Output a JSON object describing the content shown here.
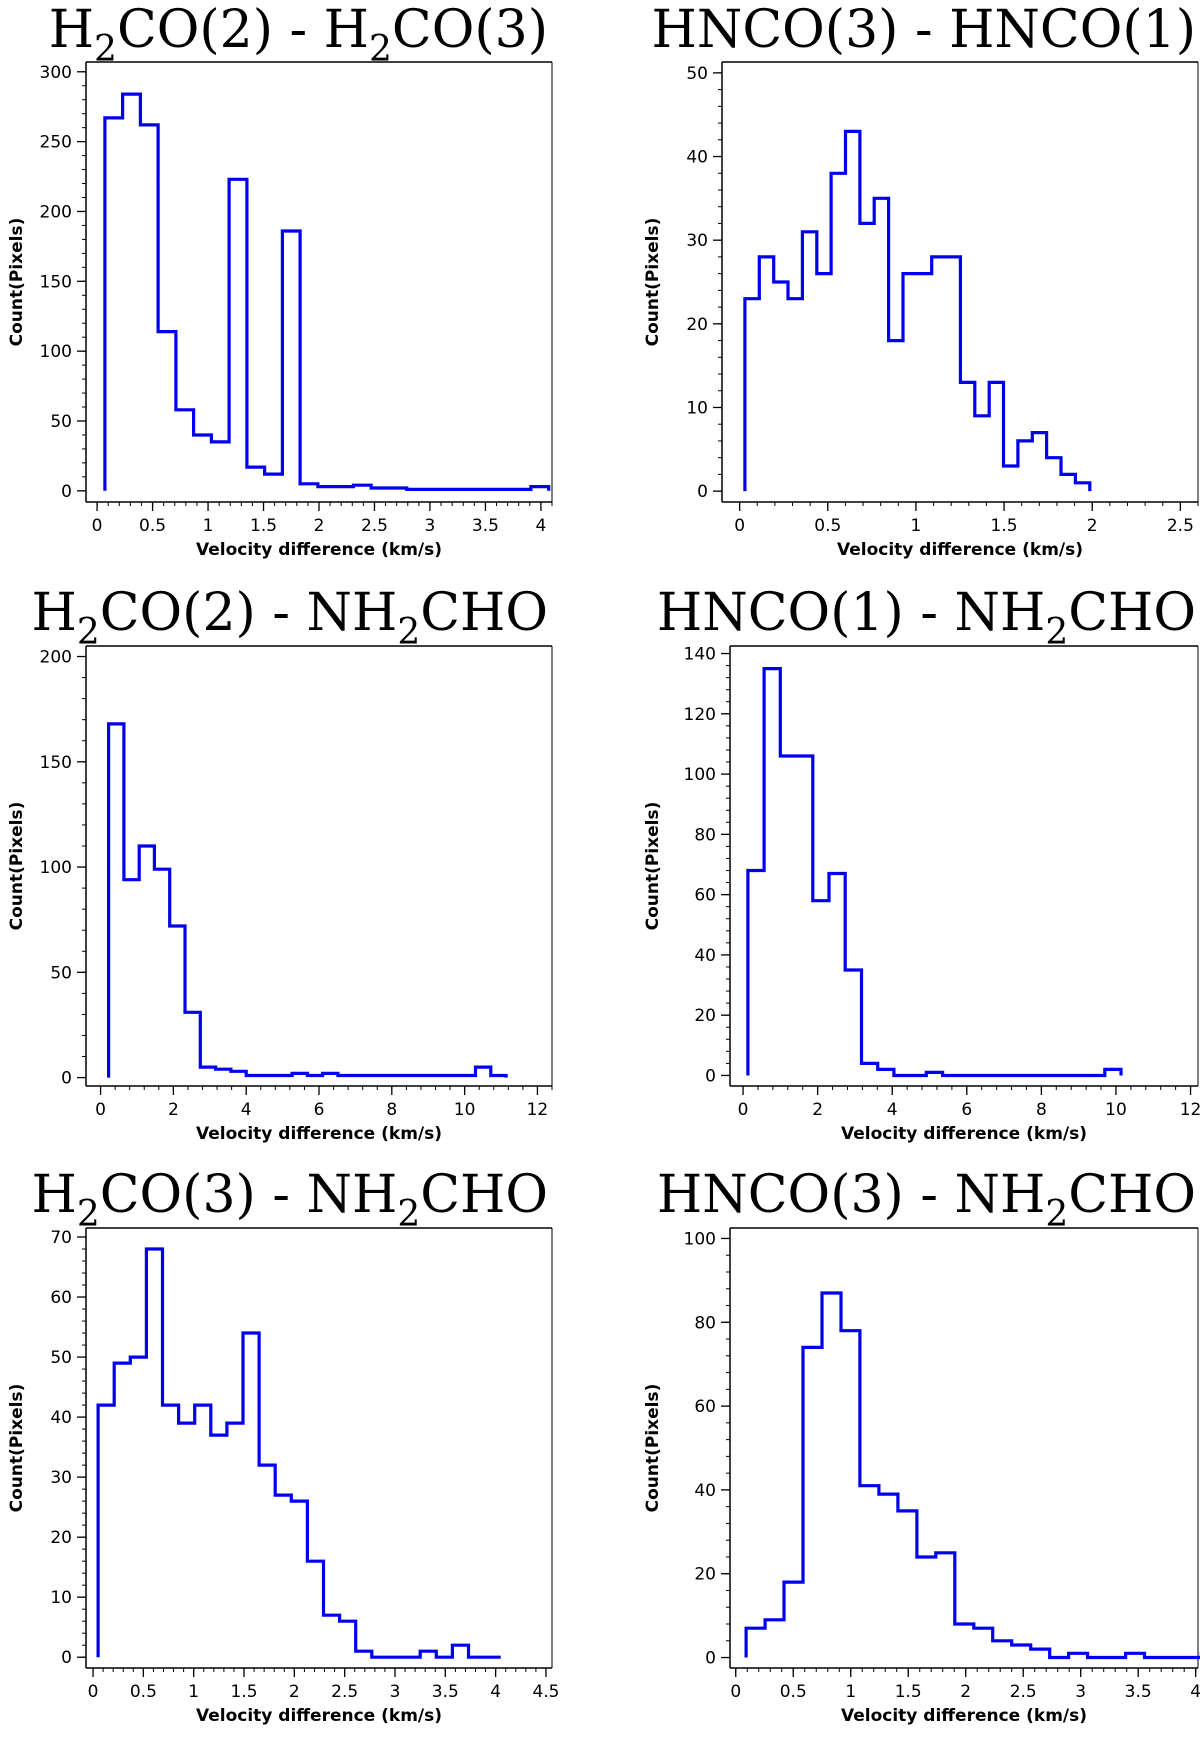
{
  "chart_data": [
    {
      "type": "histogram",
      "title": "H2CO(2) - H2CO(3)",
      "title_parts": [
        {
          "t": "H"
        },
        {
          "t": "2",
          "sub": true
        },
        {
          "t": "CO(2) - H"
        },
        {
          "t": "2",
          "sub": true
        },
        {
          "t": "CO(3)"
        }
      ],
      "xlabel": "Velocity difference (km/s)",
      "ylabel": "Count(Pixels)",
      "xlim": [
        -0.1,
        4.1
      ],
      "ylim": [
        -8,
        307
      ],
      "xticks": [
        "0",
        "0.5",
        "1",
        "1.5",
        "2",
        "2.5",
        "3",
        "3.5",
        "4"
      ],
      "xtick_values": [
        0,
        0.5,
        1,
        1.5,
        2,
        2.5,
        3,
        3.5,
        4
      ],
      "yticks": [
        "0",
        "50",
        "100",
        "150",
        "200",
        "250",
        "300"
      ],
      "ytick_values": [
        0,
        50,
        100,
        150,
        200,
        250,
        300
      ],
      "xminor": 0.1,
      "yminor": 10,
      "line_color": "#0000ee",
      "bin_start": 0.07,
      "bin_width": 0.16,
      "values": [
        267,
        284,
        262,
        114,
        58,
        40,
        35,
        223,
        17,
        12,
        186,
        5,
        3,
        3,
        4,
        2,
        2,
        1,
        1,
        1,
        1,
        1,
        1,
        1,
        3
      ]
    },
    {
      "type": "histogram",
      "title": "HNCO(3) - HNCO(1)",
      "title_parts": [
        {
          "t": "HNCO(3) - HNCO(1)"
        }
      ],
      "xlabel": "Velocity difference (km/s)",
      "ylabel": "Count(Pixels)",
      "xlim": [
        -0.1,
        2.6
      ],
      "ylim": [
        -1.3,
        51.3
      ],
      "xticks": [
        "0",
        "0.5",
        "1",
        "1.5",
        "2",
        "2.5"
      ],
      "xtick_values": [
        0,
        0.5,
        1,
        1.5,
        2,
        2.5
      ],
      "yticks": [
        "0",
        "10",
        "20",
        "30",
        "40",
        "50"
      ],
      "ytick_values": [
        0,
        10,
        20,
        30,
        40,
        50
      ],
      "xminor": 0.1,
      "yminor": 2,
      "line_color": "#0000ee",
      "bin_start": 0.03,
      "bin_width": 0.0815,
      "values": [
        23,
        28,
        25,
        23,
        31,
        26,
        38,
        43,
        32,
        35,
        18,
        26,
        26,
        28,
        28,
        13,
        9,
        13,
        3,
        6,
        7,
        4,
        2,
        1
      ]
    },
    {
      "type": "histogram",
      "title": "H2CO(2) - NH2CHO",
      "title_parts": [
        {
          "t": "H"
        },
        {
          "t": "2",
          "sub": true
        },
        {
          "t": "CO(2) - NH"
        },
        {
          "t": "2",
          "sub": true
        },
        {
          "t": "CHO"
        }
      ],
      "xlabel": "Velocity difference (km/s)",
      "ylabel": "Count(Pixels)",
      "xlim": [
        -0.4,
        12.4
      ],
      "ylim": [
        -4,
        205
      ],
      "xticks": [
        "0",
        "2",
        "4",
        "6",
        "8",
        "10",
        "12"
      ],
      "xtick_values": [
        0,
        2,
        4,
        6,
        8,
        10,
        12
      ],
      "yticks": [
        "0",
        "50",
        "100",
        "150",
        "200"
      ],
      "ytick_values": [
        0,
        50,
        100,
        150,
        200
      ],
      "xminor": 0.4,
      "yminor": 10,
      "line_color": "#0000ee",
      "bin_start": 0.22,
      "bin_width": 0.42,
      "values": [
        168,
        94,
        110,
        99,
        72,
        31,
        5,
        4,
        3,
        1,
        1,
        1,
        2,
        1,
        2,
        1,
        1,
        1,
        1,
        1,
        1,
        1,
        1,
        1,
        5,
        1
      ]
    },
    {
      "type": "histogram",
      "title": "HNCO(1) - NH2CHO",
      "title_parts": [
        {
          "t": "HNCO(1) - NH"
        },
        {
          "t": "2",
          "sub": true
        },
        {
          "t": "CHO"
        }
      ],
      "xlabel": "Velocity difference (km/s)",
      "ylabel": "Count(Pixels)",
      "xlim": [
        -0.35,
        12.2
      ],
      "ylim": [
        -3.5,
        142.5
      ],
      "xticks": [
        "0",
        "2",
        "4",
        "6",
        "8",
        "10",
        "12"
      ],
      "xtick_values": [
        0,
        2,
        4,
        6,
        8,
        10,
        12
      ],
      "yticks": [
        "0",
        "20",
        "40",
        "60",
        "80",
        "100",
        "120",
        "140"
      ],
      "ytick_values": [
        0,
        20,
        40,
        60,
        80,
        100,
        120,
        140
      ],
      "xminor": 0.4,
      "yminor": 4,
      "line_color": "#0000ee",
      "bin_start": 0.13,
      "bin_width": 0.435,
      "values": [
        68,
        135,
        106,
        106,
        58,
        67,
        35,
        4,
        2,
        0,
        0,
        1,
        0,
        0,
        0,
        0,
        0,
        0,
        0,
        0,
        0,
        0,
        2
      ]
    },
    {
      "type": "histogram",
      "title": "H2CO(3) - NH2CHO",
      "title_parts": [
        {
          "t": "H"
        },
        {
          "t": "2",
          "sub": true
        },
        {
          "t": "CO(3) - NH"
        },
        {
          "t": "2",
          "sub": true
        },
        {
          "t": "CHO"
        }
      ],
      "xlabel": "Velocity difference (km/s)",
      "ylabel": "Count(Pixels)",
      "xlim": [
        -0.07,
        4.56
      ],
      "ylim": [
        -1.8,
        71.5
      ],
      "xticks": [
        "0",
        "0.5",
        "1",
        "1.5",
        "2",
        "2.5",
        "3",
        "3.5",
        "4",
        "4.5"
      ],
      "xtick_values": [
        0,
        0.5,
        1,
        1.5,
        2,
        2.5,
        3,
        3.5,
        4,
        4.5
      ],
      "yticks": [
        "0",
        "10",
        "20",
        "30",
        "40",
        "50",
        "60",
        "70"
      ],
      "ytick_values": [
        0,
        10,
        20,
        30,
        40,
        50,
        60,
        70
      ],
      "xminor": 0.1,
      "yminor": 2,
      "line_color": "#0000ee",
      "bin_start": 0.05,
      "bin_width": 0.16,
      "values": [
        42,
        49,
        50,
        68,
        42,
        39,
        42,
        37,
        39,
        54,
        32,
        27,
        26,
        16,
        7,
        6,
        1,
        0,
        0,
        0,
        1,
        0,
        2,
        0,
        0
      ]
    },
    {
      "type": "histogram",
      "title": "HNCO(3) - NH2CHO",
      "title_parts": [
        {
          "t": "HNCO(3) - NH"
        },
        {
          "t": "2",
          "sub": true
        },
        {
          "t": "CHO"
        }
      ],
      "xlabel": "Velocity difference (km/s)",
      "ylabel": "Count(Pixels)",
      "xlim": [
        -0.05,
        4.02
      ],
      "ylim": [
        -2.5,
        102.5
      ],
      "xticks": [
        "0",
        "0.5",
        "1",
        "1.5",
        "2",
        "2.5",
        "3",
        "3.5",
        "4"
      ],
      "xtick_values": [
        0,
        0.5,
        1,
        1.5,
        2,
        2.5,
        3,
        3.5,
        4
      ],
      "yticks": [
        "0",
        "20",
        "40",
        "60",
        "80",
        "100"
      ],
      "ytick_values": [
        0,
        20,
        40,
        60,
        80,
        100
      ],
      "xminor": 0.1,
      "yminor": 4,
      "line_color": "#0000ee",
      "bin_start": 0.09,
      "bin_width": 0.165,
      "values": [
        7,
        9,
        18,
        74,
        87,
        78,
        41,
        39,
        35,
        24,
        25,
        8,
        7,
        4,
        3,
        2,
        0,
        1,
        0,
        0,
        1,
        0,
        0,
        0,
        1
      ]
    }
  ]
}
